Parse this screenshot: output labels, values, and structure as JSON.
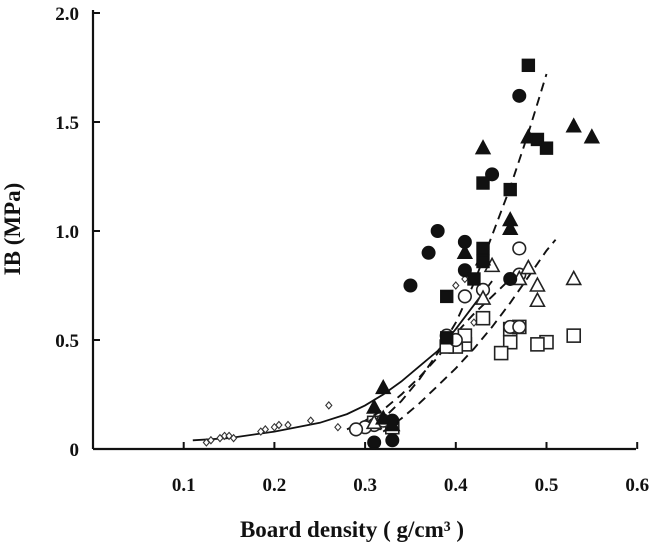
{
  "chart_data": {
    "type": "scatter",
    "xlabel": "Board density ( g/cm³ )",
    "ylabel": "IB (MPa)",
    "xlim": [
      0,
      0.6
    ],
    "ylim": [
      0,
      2.0
    ],
    "x_ticks": [
      "0.1",
      "0.2",
      "0.3",
      "0.4",
      "0.5",
      "0.6"
    ],
    "x_tick_values": [
      0.1,
      0.2,
      0.3,
      0.4,
      0.5,
      0.6
    ],
    "y_ticks": [
      "0",
      "0.5",
      "1.0",
      "1.5",
      "2.0"
    ],
    "y_tick_values": [
      0,
      0.5,
      1.0,
      1.5,
      2.0
    ],
    "grid": false,
    "legend": "none",
    "series": [
      {
        "marker": "filled-square",
        "points": [
          [
            0.48,
            1.76
          ],
          [
            0.49,
            1.42
          ],
          [
            0.5,
            1.38
          ],
          [
            0.46,
            1.19
          ],
          [
            0.43,
            1.22
          ],
          [
            0.43,
            0.92
          ],
          [
            0.43,
            0.86
          ],
          [
            0.42,
            0.78
          ],
          [
            0.39,
            0.7
          ],
          [
            0.39,
            0.51
          ]
        ]
      },
      {
        "marker": "filled-circle",
        "points": [
          [
            0.47,
            1.62
          ],
          [
            0.44,
            1.26
          ],
          [
            0.38,
            1.0
          ],
          [
            0.37,
            0.9
          ],
          [
            0.41,
            0.95
          ],
          [
            0.41,
            0.82
          ],
          [
            0.35,
            0.75
          ],
          [
            0.46,
            0.78
          ],
          [
            0.33,
            0.13
          ],
          [
            0.31,
            0.03
          ],
          [
            0.33,
            0.04
          ]
        ]
      },
      {
        "marker": "filled-triangle",
        "points": [
          [
            0.53,
            1.48
          ],
          [
            0.55,
            1.43
          ],
          [
            0.48,
            1.43
          ],
          [
            0.43,
            1.38
          ],
          [
            0.46,
            1.05
          ],
          [
            0.46,
            1.01
          ],
          [
            0.41,
            0.9
          ],
          [
            0.43,
            0.87
          ],
          [
            0.32,
            0.28
          ],
          [
            0.31,
            0.19
          ],
          [
            0.32,
            0.14
          ],
          [
            0.33,
            0.11
          ]
        ]
      },
      {
        "marker": "open-circle",
        "points": [
          [
            0.47,
            0.92
          ],
          [
            0.47,
            0.8
          ],
          [
            0.43,
            0.73
          ],
          [
            0.41,
            0.7
          ],
          [
            0.46,
            0.56
          ],
          [
            0.47,
            0.56
          ],
          [
            0.39,
            0.52
          ],
          [
            0.4,
            0.5
          ],
          [
            0.31,
            0.11
          ],
          [
            0.32,
            0.13
          ],
          [
            0.3,
            0.1
          ],
          [
            0.29,
            0.09
          ]
        ]
      },
      {
        "marker": "open-triangle",
        "points": [
          [
            0.48,
            0.83
          ],
          [
            0.47,
            0.78
          ],
          [
            0.53,
            0.78
          ],
          [
            0.49,
            0.75
          ],
          [
            0.49,
            0.68
          ],
          [
            0.43,
            0.69
          ],
          [
            0.44,
            0.84
          ],
          [
            0.31,
            0.12
          ]
        ]
      },
      {
        "marker": "open-square",
        "points": [
          [
            0.46,
            0.55
          ],
          [
            0.47,
            0.56
          ],
          [
            0.43,
            0.6
          ],
          [
            0.53,
            0.52
          ],
          [
            0.5,
            0.49
          ],
          [
            0.49,
            0.48
          ],
          [
            0.46,
            0.49
          ],
          [
            0.41,
            0.48
          ],
          [
            0.4,
            0.47
          ],
          [
            0.39,
            0.47
          ],
          [
            0.41,
            0.52
          ],
          [
            0.45,
            0.44
          ],
          [
            0.31,
            0.12
          ],
          [
            0.33,
            0.1
          ]
        ]
      },
      {
        "marker": "small-diamond",
        "points": [
          [
            0.125,
            0.03
          ],
          [
            0.13,
            0.04
          ],
          [
            0.14,
            0.05
          ],
          [
            0.145,
            0.06
          ],
          [
            0.15,
            0.06
          ],
          [
            0.155,
            0.05
          ],
          [
            0.185,
            0.08
          ],
          [
            0.19,
            0.09
          ],
          [
            0.2,
            0.1
          ],
          [
            0.205,
            0.11
          ],
          [
            0.215,
            0.11
          ],
          [
            0.24,
            0.13
          ],
          [
            0.26,
            0.2
          ],
          [
            0.27,
            0.1
          ],
          [
            0.4,
            0.75
          ],
          [
            0.41,
            0.78
          ],
          [
            0.42,
            0.58
          ]
        ]
      }
    ],
    "curves": [
      {
        "style": "solid",
        "points": [
          [
            0.11,
            0.04
          ],
          [
            0.15,
            0.05
          ],
          [
            0.2,
            0.08
          ],
          [
            0.25,
            0.12
          ],
          [
            0.28,
            0.16
          ],
          [
            0.3,
            0.2
          ],
          [
            0.32,
            0.25
          ],
          [
            0.34,
            0.31
          ],
          [
            0.36,
            0.38
          ],
          [
            0.38,
            0.45
          ],
          [
            0.4,
            0.55
          ],
          [
            0.42,
            0.66
          ],
          [
            0.44,
            0.77
          ]
        ]
      },
      {
        "style": "dashed",
        "points": [
          [
            0.3,
            0.08
          ],
          [
            0.32,
            0.14
          ],
          [
            0.34,
            0.22
          ],
          [
            0.36,
            0.32
          ],
          [
            0.38,
            0.44
          ],
          [
            0.4,
            0.58
          ],
          [
            0.42,
            0.76
          ],
          [
            0.44,
            0.98
          ],
          [
            0.46,
            1.2
          ],
          [
            0.48,
            1.45
          ],
          [
            0.5,
            1.72
          ]
        ]
      },
      {
        "style": "dashed",
        "points": [
          [
            0.28,
            0.09
          ],
          [
            0.3,
            0.13
          ],
          [
            0.32,
            0.18
          ],
          [
            0.34,
            0.25
          ],
          [
            0.36,
            0.33
          ],
          [
            0.38,
            0.42
          ],
          [
            0.4,
            0.53
          ],
          [
            0.42,
            0.62
          ],
          [
            0.44,
            0.7
          ],
          [
            0.46,
            0.78
          ]
        ]
      },
      {
        "style": "dashed",
        "points": [
          [
            0.32,
            0.08
          ],
          [
            0.34,
            0.14
          ],
          [
            0.36,
            0.21
          ],
          [
            0.38,
            0.29
          ],
          [
            0.4,
            0.37
          ],
          [
            0.42,
            0.46
          ],
          [
            0.44,
            0.56
          ],
          [
            0.46,
            0.67
          ],
          [
            0.48,
            0.79
          ],
          [
            0.5,
            0.91
          ],
          [
            0.51,
            0.96
          ]
        ]
      }
    ]
  }
}
